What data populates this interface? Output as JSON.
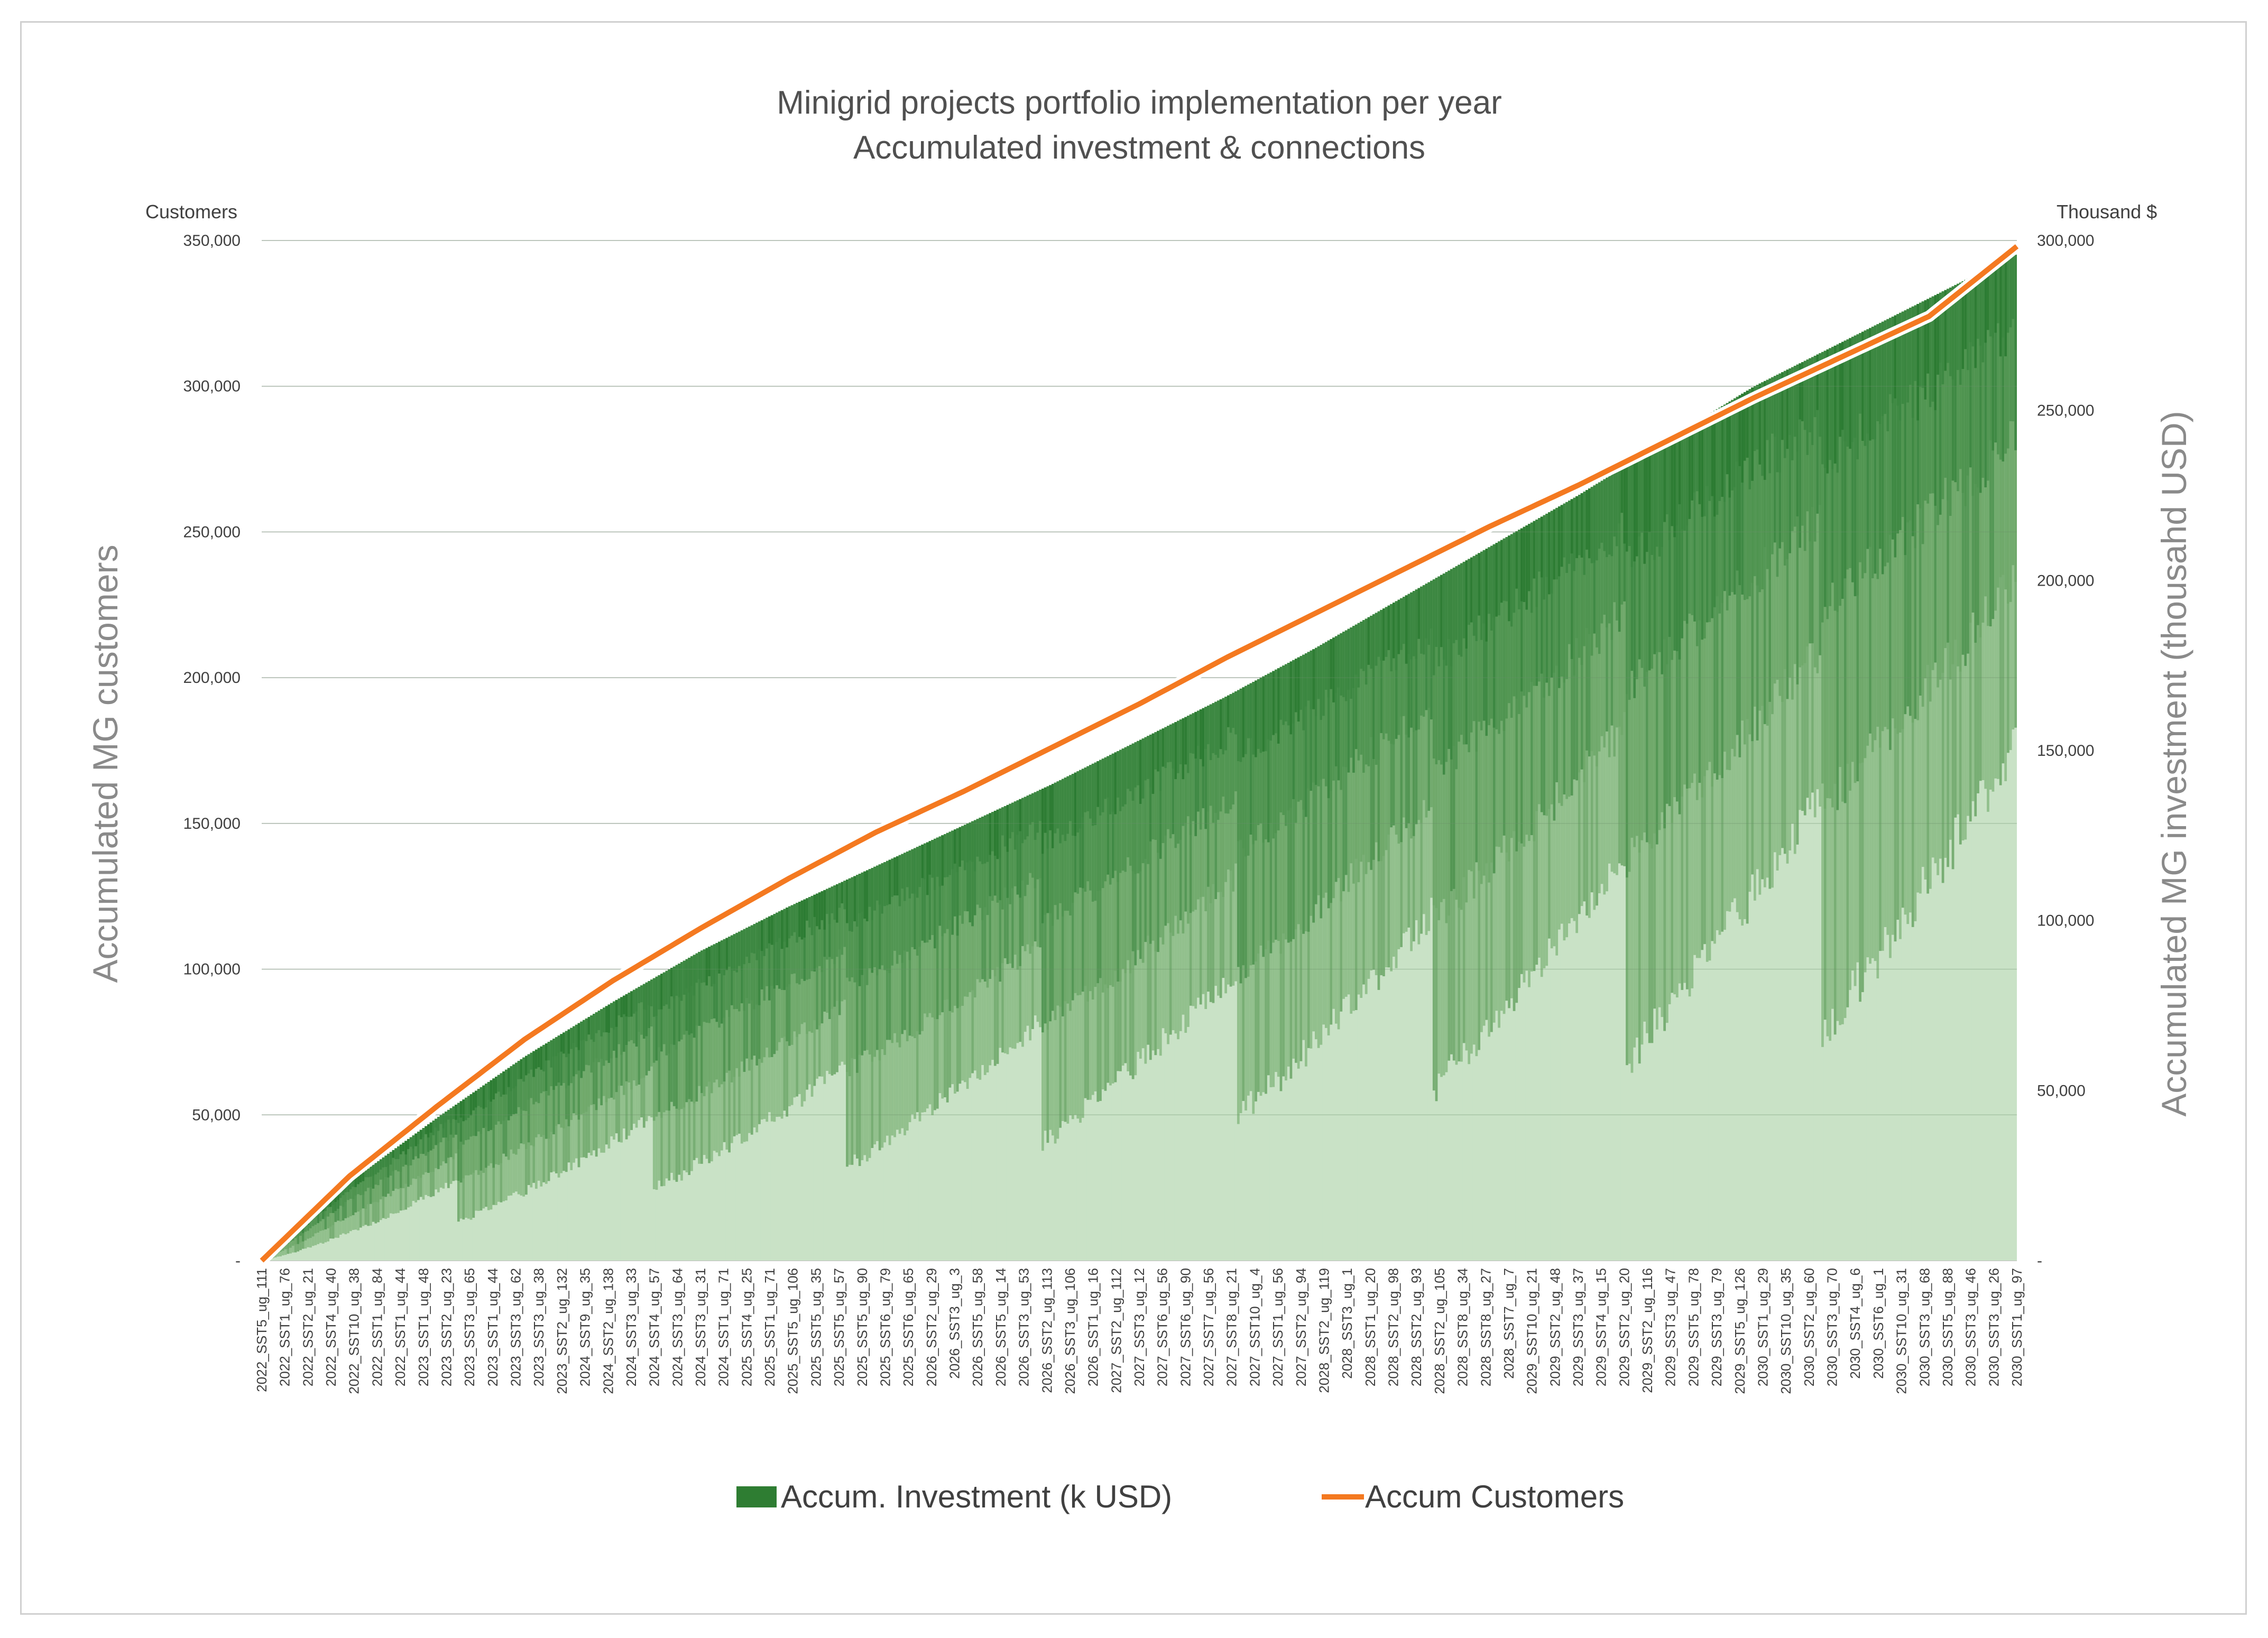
{
  "chart_data": {
    "type": "bar",
    "title_line1": "Minigrid projects portfolio implementation per year",
    "title_line2": "Accumulated investment & connections",
    "left_unit": "Customers",
    "right_unit": "Thousand $",
    "ylabel_left": "Accumulated MG customers",
    "ylabel_right": "Accumulated MG investment (thousahd USD)",
    "left_ticks": [
      "-",
      "50,000",
      "100,000",
      "150,000",
      "200,000",
      "250,000",
      "300,000",
      "350,000"
    ],
    "left_values": [
      0,
      50000,
      100000,
      150000,
      200000,
      250000,
      300000,
      350000
    ],
    "right_ticks": [
      "50,000",
      "100,000",
      "150,000",
      "200,000",
      "250,000",
      "300,000"
    ],
    "right_values": [
      50000,
      100000,
      150000,
      200000,
      250000,
      300000
    ],
    "ylim_left": [
      0,
      350000
    ],
    "ylim_right": [
      0,
      300000
    ],
    "x_tick_labels": [
      "2022_SST5_ug_111",
      "2022_SST1_ug_76",
      "2022_SST2_ug_21",
      "2022_SST4_ug_40",
      "2022_SST10_ug_38",
      "2022_SST1_ug_84",
      "2022_SST1_ug_44",
      "2023_SST1_ug_48",
      "2023_SST2_ug_23",
      "2023_SST3_ug_65",
      "2023_SST1_ug_44",
      "2023_SST3_ug_62",
      "2023_SST3_ug_38",
      "2023_SST2_ug_132",
      "2024_SST9_ug_35",
      "2024_SST2_ug_138",
      "2024_SST3_ug_33",
      "2024_SST4_ug_57",
      "2024_SST3_ug_64",
      "2024_SST3_ug_31",
      "2024_SST1_ug_71",
      "2025_SST4_ug_25",
      "2025_SST1_ug_71",
      "2025_SST5_ug_106",
      "2025_SST5_ug_35",
      "2025_SST5_ug_57",
      "2025_SST5_ug_90",
      "2025_SST6_ug_79",
      "2025_SST6_ug_65",
      "2026_SST2_ug_29",
      "2026_SST3_ug_3",
      "2026_SST5_ug_58",
      "2026_SST5_ug_14",
      "2026_SST3_ug_53",
      "2026_SST2_ug_113",
      "2026_SST3_ug_106",
      "2026_SST1_ug_16",
      "2027_SST2_ug_112",
      "2027_SST3_ug_12",
      "2027_SST6_ug_56",
      "2027_SST6_ug_90",
      "2027_SST7_ug_56",
      "2027_SST8_ug_21",
      "2027_SST10_ug_4",
      "2027_SST1_ug_56",
      "2027_SST2_ug_94",
      "2028_SST2_ug_119",
      "2028_SST3_ug_1",
      "2028_SST1_ug_20",
      "2028_SST2_ug_98",
      "2028_SST2_ug_93",
      "2028_SST2_ug_105",
      "2028_SST8_ug_34",
      "2028_SST8_ug_27",
      "2028_SST7_ug_7",
      "2029_SST10_ug_21",
      "2029_SST2_ug_48",
      "2029_SST3_ug_37",
      "2029_SST4_ug_15",
      "2029_SST2_ug_20",
      "2029_SST2_ug_116",
      "2029_SST3_ug_47",
      "2029_SST5_ug_78",
      "2029_SST3_ug_79",
      "2029_SST5_ug_126",
      "2030_SST1_ug_29",
      "2030_SST10_ug_35",
      "2030_SST2_ug_60",
      "2030_SST3_ug_70",
      "2030_SST4_ug_6",
      "2030_SST6_ug_1",
      "2030_SST10_ug_31",
      "2030_SST3_ug_68",
      "2030_SST5_ug_88",
      "2030_SST3_ug_46",
      "2030_SST3_ug_26",
      "2030_SST1_ug_97"
    ],
    "series": [
      {
        "name": "Accum. Investment (k USD)",
        "type": "bar",
        "axis": "right",
        "color": "#2e7d32",
        "x_fraction": [
          0,
          0.05,
          0.1,
          0.15,
          0.2,
          0.25,
          0.3,
          0.35,
          0.4,
          0.45,
          0.5,
          0.55,
          0.6,
          0.65,
          0.7,
          0.75,
          0.8,
          0.85,
          0.9,
          0.95,
          1.0
        ],
        "values": [
          0,
          23000,
          42000,
          60000,
          76000,
          91000,
          104000,
          116000,
          128000,
          140000,
          153000,
          166000,
          180000,
          195000,
          210000,
          225000,
          241000,
          257000,
          270000,
          283000,
          296000
        ]
      },
      {
        "name": "Accum Customers",
        "type": "line",
        "axis": "left",
        "color": "#f47920",
        "x_fraction": [
          0,
          0.05,
          0.1,
          0.15,
          0.2,
          0.25,
          0.3,
          0.35,
          0.4,
          0.45,
          0.5,
          0.55,
          0.6,
          0.65,
          0.7,
          0.75,
          0.8,
          0.85,
          0.9,
          0.95,
          1.0
        ],
        "values": [
          0,
          29000,
          53000,
          76000,
          96000,
          114000,
          131000,
          147000,
          161000,
          176000,
          191000,
          207000,
          222000,
          237000,
          252000,
          266000,
          281000,
          296000,
          310000,
          324000,
          348000
        ]
      }
    ],
    "legend": {
      "position": "bottom",
      "items": [
        {
          "label": "Accum. Investment (k USD)",
          "color": "#2e7d32",
          "marker": "square"
        },
        {
          "label": "Accum Customers",
          "color": "#f47920",
          "marker": "line"
        }
      ]
    }
  }
}
